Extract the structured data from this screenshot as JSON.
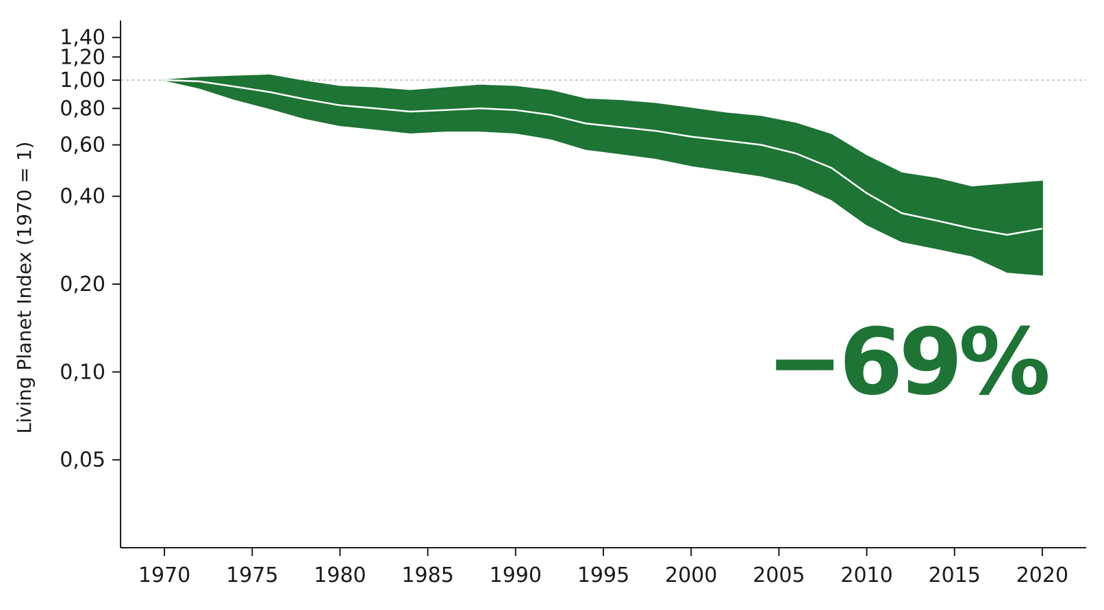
{
  "chart_data": {
    "type": "area",
    "ylabel": "Living Planet Index (1970 = 1)",
    "xlabel": "",
    "y_scale": "log",
    "ylim": [
      0.025,
      1.6
    ],
    "xlim": [
      1967.5,
      2022.5
    ],
    "x_ticks": [
      1970,
      1975,
      1980,
      1985,
      1990,
      1995,
      2000,
      2005,
      2010,
      2015,
      2020
    ],
    "x_tick_labels": [
      "1970",
      "1975",
      "1980",
      "1985",
      "1990",
      "1995",
      "2000",
      "2005",
      "2010",
      "2015",
      "2020"
    ],
    "y_ticks": [
      1.4,
      1.2,
      1.0,
      0.8,
      0.6,
      0.4,
      0.2,
      0.1,
      0.05
    ],
    "y_tick_labels": [
      "1,40",
      "1,20",
      "1,00",
      "0,80",
      "0,60",
      "0,40",
      "0,20",
      "0,10",
      "0,05"
    ],
    "reference_line": 1.0,
    "annotation": "−69%",
    "colors": {
      "band": "#1e7435",
      "index_line": "#ffffff",
      "reference_line": "#aaaaaa",
      "annotation": "#1e7435",
      "axis": "#1a1a1a"
    },
    "x": [
      1970,
      1972,
      1974,
      1976,
      1978,
      1980,
      1982,
      1984,
      1986,
      1988,
      1990,
      1992,
      1994,
      1996,
      1998,
      2000,
      2002,
      2004,
      2006,
      2008,
      2010,
      2012,
      2014,
      2016,
      2018,
      2020
    ],
    "series": [
      {
        "values": [
          1.0,
          0.99,
          0.95,
          0.91,
          0.86,
          0.82,
          0.8,
          0.78,
          0.79,
          0.8,
          0.79,
          0.76,
          0.71,
          0.69,
          0.67,
          0.64,
          0.62,
          0.6,
          0.56,
          0.5,
          0.41,
          0.35,
          0.33,
          0.31,
          0.295,
          0.31
        ]
      },
      {
        "values": [
          1.0,
          1.02,
          1.03,
          1.04,
          0.99,
          0.95,
          0.94,
          0.92,
          0.94,
          0.96,
          0.95,
          0.92,
          0.86,
          0.85,
          0.83,
          0.8,
          0.77,
          0.75,
          0.71,
          0.65,
          0.55,
          0.48,
          0.46,
          0.43,
          0.44,
          0.45
        ]
      },
      {
        "values": [
          1.0,
          0.94,
          0.86,
          0.8,
          0.74,
          0.7,
          0.68,
          0.66,
          0.67,
          0.67,
          0.66,
          0.63,
          0.58,
          0.56,
          0.54,
          0.51,
          0.49,
          0.47,
          0.44,
          0.39,
          0.32,
          0.28,
          0.265,
          0.25,
          0.22,
          0.215
        ]
      }
    ]
  }
}
